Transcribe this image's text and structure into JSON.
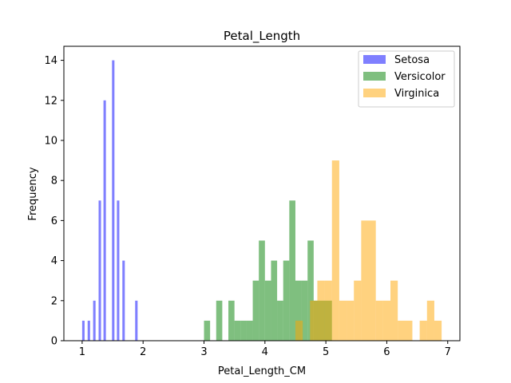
{
  "chart_data": {
    "type": "bar",
    "title": "Petal_Length",
    "xlabel": "Petal_Length_CM",
    "ylabel": "Frequency",
    "xlim": [
      0.7,
      7.2
    ],
    "ylim": [
      0,
      14.7
    ],
    "xticks": [
      1,
      2,
      3,
      4,
      5,
      6,
      7
    ],
    "yticks": [
      0,
      2,
      4,
      6,
      8,
      10,
      12,
      14
    ],
    "grid": false,
    "legend_position": "top-right",
    "series": [
      {
        "name": "Setosa",
        "color": "#0000ff",
        "opacity": 0.5,
        "bins": [
          {
            "x0": 1.0,
            "x1": 1.04,
            "count": 1
          },
          {
            "x0": 1.09,
            "x1": 1.13,
            "count": 1
          },
          {
            "x0": 1.18,
            "x1": 1.22,
            "count": 2
          },
          {
            "x0": 1.27,
            "x1": 1.31,
            "count": 7
          },
          {
            "x0": 1.35,
            "x1": 1.39,
            "count": 12
          },
          {
            "x0": 1.49,
            "x1": 1.53,
            "count": 14
          },
          {
            "x0": 1.57,
            "x1": 1.61,
            "count": 7
          },
          {
            "x0": 1.66,
            "x1": 1.7,
            "count": 4
          },
          {
            "x0": 1.87,
            "x1": 1.91,
            "count": 2
          }
        ]
      },
      {
        "name": "Versicolor",
        "color": "#008000",
        "opacity": 0.5,
        "bins": [
          {
            "x0": 3.0,
            "x1": 3.1,
            "count": 1
          },
          {
            "x0": 3.2,
            "x1": 3.3,
            "count": 2
          },
          {
            "x0": 3.4,
            "x1": 3.5,
            "count": 2
          },
          {
            "x0": 3.5,
            "x1": 3.6,
            "count": 1
          },
          {
            "x0": 3.6,
            "x1": 3.7,
            "count": 1
          },
          {
            "x0": 3.7,
            "x1": 3.8,
            "count": 1
          },
          {
            "x0": 3.8,
            "x1": 3.9,
            "count": 3
          },
          {
            "x0": 3.9,
            "x1": 4.0,
            "count": 5
          },
          {
            "x0": 4.0,
            "x1": 4.1,
            "count": 3
          },
          {
            "x0": 4.1,
            "x1": 4.2,
            "count": 4
          },
          {
            "x0": 4.2,
            "x1": 4.3,
            "count": 2
          },
          {
            "x0": 4.3,
            "x1": 4.4,
            "count": 4
          },
          {
            "x0": 4.4,
            "x1": 4.5,
            "count": 7
          },
          {
            "x0": 4.5,
            "x1": 4.6,
            "count": 3
          },
          {
            "x0": 4.6,
            "x1": 4.7,
            "count": 3
          },
          {
            "x0": 4.7,
            "x1": 4.8,
            "count": 5
          },
          {
            "x0": 4.8,
            "x1": 4.9,
            "count": 2
          },
          {
            "x0": 4.9,
            "x1": 5.1,
            "count": 2
          }
        ]
      },
      {
        "name": "Virginica",
        "color": "#ffa500",
        "opacity": 0.5,
        "bins": [
          {
            "x0": 4.5,
            "x1": 4.62,
            "count": 1
          },
          {
            "x0": 4.74,
            "x1": 4.86,
            "count": 2
          },
          {
            "x0": 4.86,
            "x1": 4.98,
            "count": 3
          },
          {
            "x0": 4.98,
            "x1": 5.1,
            "count": 3
          },
          {
            "x0": 5.1,
            "x1": 5.22,
            "count": 9
          },
          {
            "x0": 5.22,
            "x1": 5.34,
            "count": 2
          },
          {
            "x0": 5.34,
            "x1": 5.46,
            "count": 2
          },
          {
            "x0": 5.46,
            "x1": 5.58,
            "count": 3
          },
          {
            "x0": 5.58,
            "x1": 5.82,
            "count": 6
          },
          {
            "x0": 5.82,
            "x1": 5.94,
            "count": 2
          },
          {
            "x0": 5.94,
            "x1": 6.06,
            "count": 2
          },
          {
            "x0": 6.06,
            "x1": 6.18,
            "count": 3
          },
          {
            "x0": 6.18,
            "x1": 6.42,
            "count": 1
          },
          {
            "x0": 6.54,
            "x1": 6.66,
            "count": 1
          },
          {
            "x0": 6.66,
            "x1": 6.78,
            "count": 2
          },
          {
            "x0": 6.78,
            "x1": 6.9,
            "count": 1
          }
        ]
      }
    ]
  }
}
